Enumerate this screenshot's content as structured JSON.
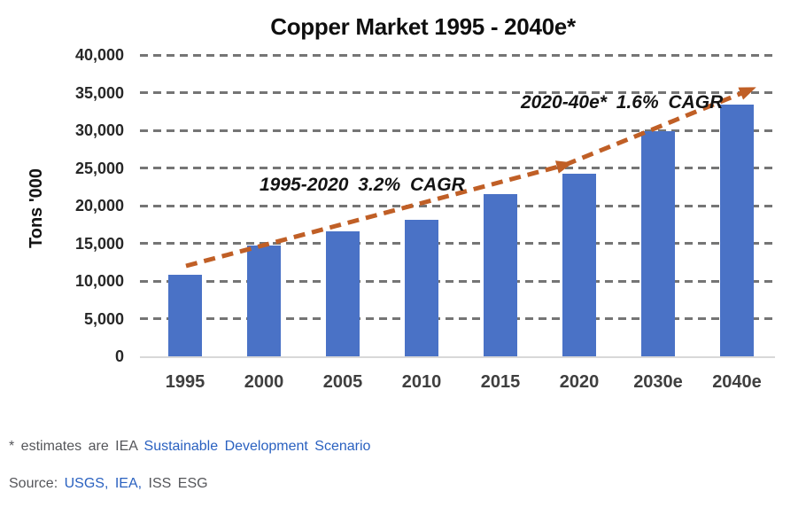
{
  "title": "Copper Market 1995 - 2040e*",
  "chart_data": {
    "type": "bar",
    "title": "Copper Market 1995 - 2040e*",
    "categories": [
      "1995",
      "2000",
      "2005",
      "2010",
      "2015",
      "2020",
      "2030e",
      "2040e"
    ],
    "values": [
      10800,
      14700,
      16600,
      18100,
      21500,
      24200,
      29900,
      33400
    ],
    "xlabel": "",
    "ylabel": "Tons '000",
    "ylim": [
      0,
      40000
    ],
    "ytick_step": 5000,
    "ytick_labels": [
      "0",
      "5,000",
      "10,000",
      "15,000",
      "20,000",
      "25,000",
      "30,000",
      "35,000",
      "40,000"
    ],
    "grid": "horizontal dashed gray lines, solid light-gray baseline at 0",
    "legend_position": "none",
    "bar_color": "#4a72c6",
    "trend_arrow": {
      "description": "dashed orange two-segment arrow from 1995 bar top to 2040e bar top, arrowheads at 2020 and 2040e",
      "color": "#c05f26"
    },
    "annotations": [
      {
        "text": "1995-2020 3.2% CAGR",
        "style": "italic"
      },
      {
        "text": "2020-40e* 1.6% CAGR",
        "style": "italic"
      }
    ]
  },
  "footnote": {
    "text": "* estimates are IEA",
    "link": "Sustainable Development Scenario"
  },
  "source": {
    "label": "Source:",
    "link1": "USGS,",
    "link2": "IEA,",
    "rest": "ISS ESG"
  },
  "colors": {
    "bar": "#4a72c6",
    "arrow": "#c05f26",
    "grid": "#757575",
    "baseline": "#d8d8d8",
    "link_blue": "#2a61c0",
    "text_gray": "#55565a"
  }
}
